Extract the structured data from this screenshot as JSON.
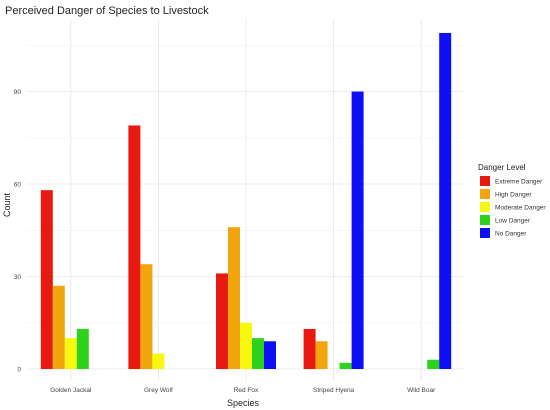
{
  "chart_data": {
    "type": "bar",
    "title": "Perceived Danger of Species to Livestock",
    "xlabel": "Species",
    "ylabel": "Count",
    "categories": [
      "Golden Jackal",
      "Grey Wolf",
      "Red Fox",
      "Striped Hyena",
      "Wild Boar"
    ],
    "yticks": [
      0,
      30,
      60,
      90
    ],
    "ylim": [
      0,
      110
    ],
    "grid": true,
    "legend_title": "Danger Level",
    "legend_position": "right",
    "series": [
      {
        "name": "Extreme Danger",
        "color": "#e8190f",
        "values": [
          58,
          79,
          31,
          13,
          null
        ]
      },
      {
        "name": "High Danger",
        "color": "#f2a60d",
        "values": [
          27,
          34,
          46,
          9,
          null
        ]
      },
      {
        "name": "Moderate Danger",
        "color": "#f7f70f",
        "values": [
          10,
          5,
          15,
          null,
          null
        ]
      },
      {
        "name": "Low Danger",
        "color": "#2ed11c",
        "values": [
          13,
          null,
          10,
          2,
          3
        ]
      },
      {
        "name": "No Danger",
        "color": "#0f0ff5",
        "values": [
          null,
          null,
          9,
          90,
          109
        ]
      }
    ]
  }
}
